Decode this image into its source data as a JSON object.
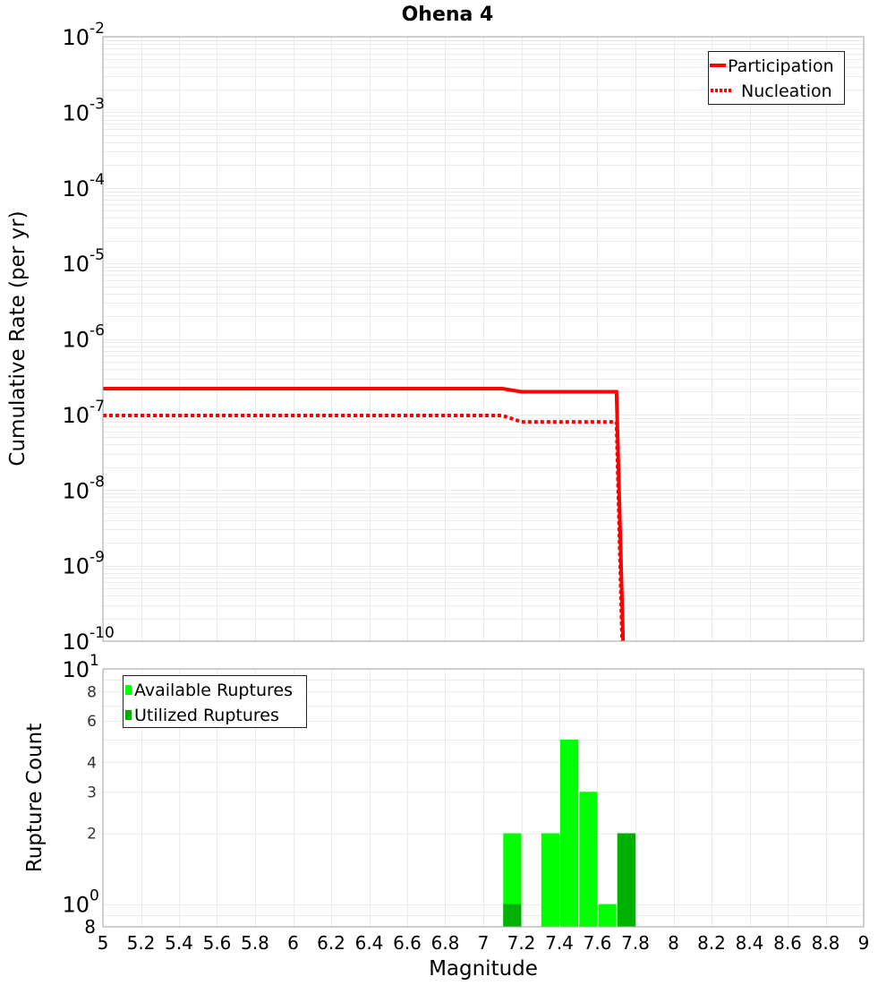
{
  "chart_data": {
    "type": "line+bar",
    "title": "Ohena 4",
    "xlabel": "Magnitude",
    "xlim": [
      5,
      9
    ],
    "grid": true,
    "xticks": [
      {
        "value": 5.0,
        "label": "5"
      },
      {
        "value": 5.2,
        "label": "5.2"
      },
      {
        "value": 5.4,
        "label": "5.4"
      },
      {
        "value": 5.6,
        "label": "5.6"
      },
      {
        "value": 5.8,
        "label": "5.8"
      },
      {
        "value": 6.0,
        "label": "6"
      },
      {
        "value": 6.2,
        "label": "6.2"
      },
      {
        "value": 6.4,
        "label": "6.4"
      },
      {
        "value": 6.6,
        "label": "6.6"
      },
      {
        "value": 6.8,
        "label": "6.8"
      },
      {
        "value": 7.0,
        "label": "7"
      },
      {
        "value": 7.2,
        "label": "7.2"
      },
      {
        "value": 7.4,
        "label": "7.4"
      },
      {
        "value": 7.6,
        "label": "7.6"
      },
      {
        "value": 7.8,
        "label": "7.8"
      },
      {
        "value": 8.0,
        "label": "8"
      },
      {
        "value": 8.2,
        "label": "8.2"
      },
      {
        "value": 8.4,
        "label": "8.4"
      },
      {
        "value": 8.6,
        "label": "8.6"
      },
      {
        "value": 8.8,
        "label": "8.8"
      },
      {
        "value": 9.0,
        "label": "9"
      }
    ],
    "panels": [
      {
        "type": "line",
        "ylabel": "Cumulative Rate (per yr)",
        "yscale": "log",
        "ylim": [
          1e-10,
          0.01
        ],
        "legend_position": "upper right",
        "yticks": [
          {
            "value": 0.01,
            "base": "10",
            "exp": "-2"
          },
          {
            "value": 0.001,
            "base": "10",
            "exp": "-3"
          },
          {
            "value": 0.0001,
            "base": "10",
            "exp": "-4"
          },
          {
            "value": 1e-05,
            "base": "10",
            "exp": "-5"
          },
          {
            "value": 1e-06,
            "base": "10",
            "exp": "-6"
          },
          {
            "value": 1e-07,
            "base": "10",
            "exp": "-7"
          },
          {
            "value": 1e-08,
            "base": "10",
            "exp": "-8"
          },
          {
            "value": 1e-09,
            "base": "10",
            "exp": "-9"
          },
          {
            "value": 1e-10,
            "base": "10",
            "exp": "-10"
          }
        ],
        "series": [
          {
            "name": "Participation",
            "style": "solid",
            "color": "#ff0000",
            "x": [
              5.0,
              7.1,
              7.2,
              7.7,
              7.735
            ],
            "y": [
              2.2e-07,
              2.2e-07,
              2e-07,
              2e-07,
              1e-10
            ]
          },
          {
            "name": "Nucleation",
            "style": "dotted",
            "color": "#ff0000",
            "x": [
              5.0,
              7.1,
              7.2,
              7.7,
              7.73
            ],
            "y": [
              9.7e-08,
              9.7e-08,
              8e-08,
              8e-08,
              1e-10
            ]
          }
        ]
      },
      {
        "type": "bar",
        "ylabel": "Rupture Count",
        "yscale": "log",
        "ylim": [
          0.8,
          10
        ],
        "legend_position": "upper left",
        "bin_width": 0.1,
        "yticks": [
          {
            "value": 10,
            "base": "10",
            "exp": "1"
          },
          {
            "value": 8,
            "label": "8"
          },
          {
            "value": 6,
            "label": "6"
          },
          {
            "value": 4,
            "label": "4"
          },
          {
            "value": 3,
            "label": "3"
          },
          {
            "value": 2,
            "label": "2"
          },
          {
            "value": 1,
            "base": "10",
            "exp": "0"
          },
          {
            "value": 0.8,
            "label": "8",
            "major": true
          }
        ],
        "x": [
          7.15,
          7.35,
          7.45,
          7.55,
          7.65,
          7.75
        ],
        "series": [
          {
            "name": "Available Ruptures",
            "color": "#00ff00",
            "values": [
              2,
              2,
              5,
              3,
              1,
              2
            ]
          },
          {
            "name": "Utilized Ruptures",
            "color": "#00b000",
            "values": [
              1,
              0,
              0,
              0,
              0,
              2
            ]
          }
        ]
      }
    ]
  }
}
